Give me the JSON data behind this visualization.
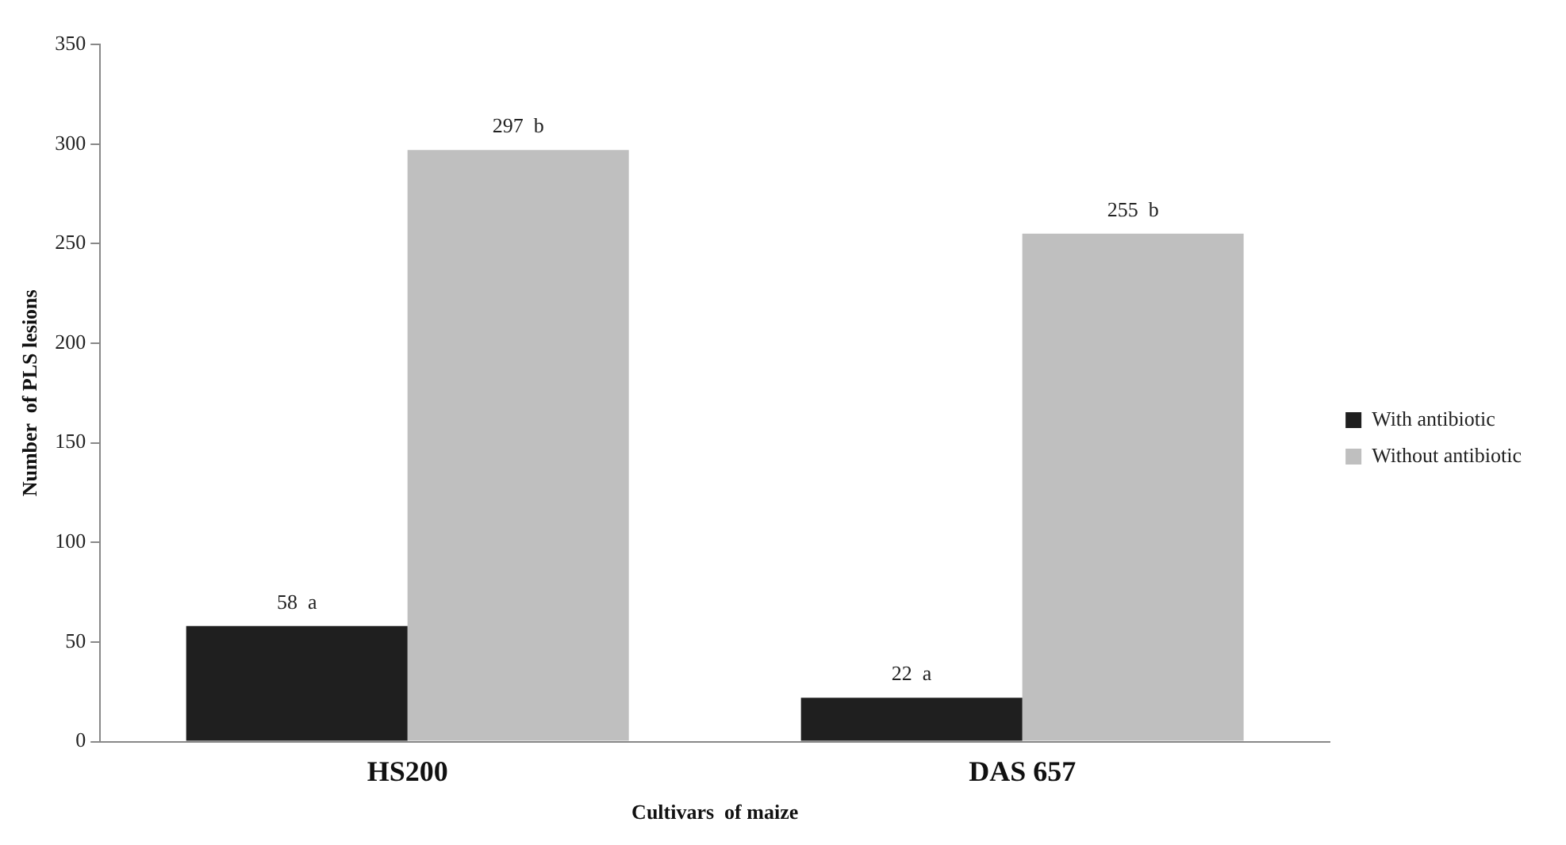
{
  "chart_data": {
    "type": "bar",
    "xlabel": "Cultivars  of maize",
    "ylabel": "Number  of PLS lesions",
    "categories": [
      "HS200",
      "DAS 657"
    ],
    "series": [
      {
        "name": "With antibiotic",
        "color": "#1f1f1f",
        "values": [
          58,
          22
        ],
        "value_labels": [
          "58  a",
          "22  a"
        ]
      },
      {
        "name": "Without antibiotic",
        "color": "#bfbfbf",
        "values": [
          297,
          255
        ],
        "value_labels": [
          "297  b",
          "255  b"
        ]
      }
    ],
    "ylim": [
      0,
      350
    ],
    "yticks": [
      0,
      50,
      100,
      150,
      200,
      250,
      300,
      350
    ],
    "grid": false,
    "legend": "right"
  }
}
